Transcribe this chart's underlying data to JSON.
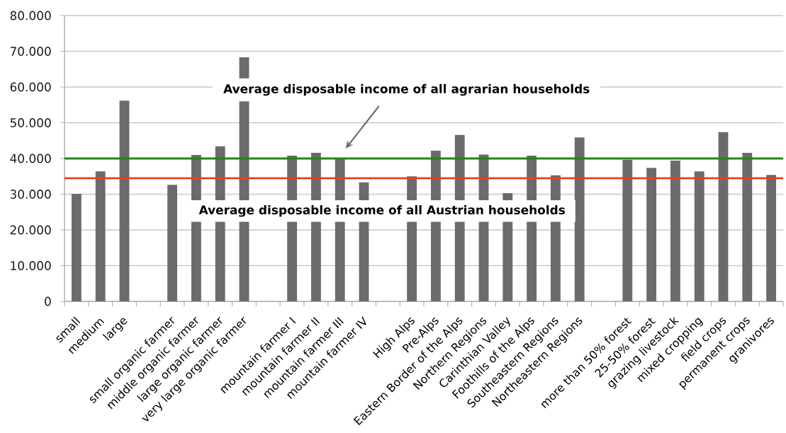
{
  "chart_data": {
    "type": "bar",
    "categories": [
      "small",
      "medium",
      "large",
      null,
      "small organic farmer",
      "middle organic farmer",
      "large organic farmer",
      "very large organic farmer",
      null,
      "mountain farmer I",
      "mountain farmer II",
      "mountain farmer III",
      "mountain farmer IV",
      null,
      "High Alps",
      "Pre-Alps",
      "Eastern Border of the Alps",
      "Northern Regions",
      "Carinthian Valley",
      "Foothills of the Alps",
      "Southeastern Regions",
      "Northeastern Regions",
      null,
      "more than 50% forest",
      "25-50% forest",
      "grazing livestock",
      "mixed cropping",
      "field crops",
      "permanent crops",
      "granivores"
    ],
    "values": [
      30100,
      36400,
      56200,
      null,
      32600,
      41000,
      43400,
      68300,
      null,
      40800,
      41600,
      40100,
      33300,
      null,
      35000,
      42200,
      46600,
      41100,
      30300,
      40800,
      35300,
      45900,
      null,
      39600,
      37400,
      39400,
      36400,
      47400,
      41600,
      35400
    ],
    "color": "#6b6b6b",
    "ylim": [
      0,
      80000
    ],
    "yticks": [
      0,
      {
        "value": 10000,
        "label": "10.000"
      },
      {
        "value": 20000,
        "label": "20.000"
      },
      {
        "value": 30000,
        "label": "30.000"
      },
      {
        "value": 40000,
        "label": "40.000"
      },
      {
        "value": 50000,
        "label": "50.000"
      },
      {
        "value": 60000,
        "label": "60.000"
      },
      {
        "value": 70000,
        "label": "70.000"
      },
      {
        "value": 80000,
        "label": "80.000"
      }
    ],
    "grid": "y",
    "ref_lines": [
      {
        "axis": "y",
        "value": 40000,
        "color": "#1a8a1a"
      },
      {
        "axis": "y",
        "value": 34500,
        "label": "Average disposable income of all Austrian households",
        "color": "#f03c1e"
      }
    ],
    "annotations": [
      "Average disposable income of all agrarian households"
    ]
  }
}
